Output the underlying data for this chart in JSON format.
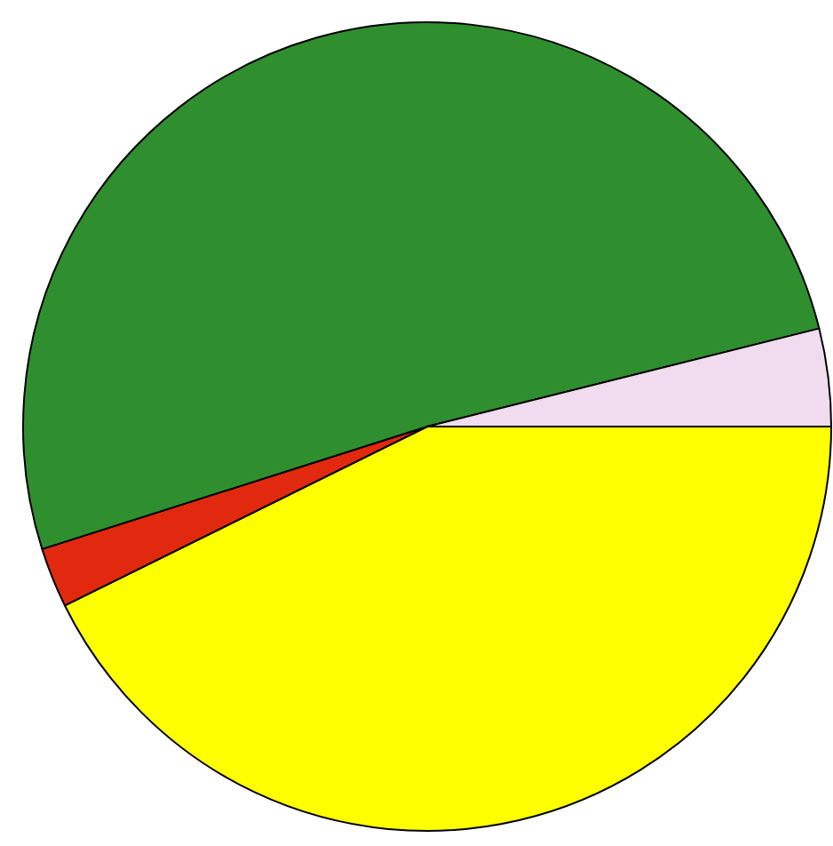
{
  "chart_data": {
    "type": "pie",
    "categories": [
      null,
      null,
      null,
      null
    ],
    "values": [
      42.7,
      2.4,
      51.0,
      3.9
    ],
    "colors": [
      "#ffff00",
      "#e0290f",
      "#2f8f2f",
      "#f0dcee"
    ],
    "legend": false
  }
}
